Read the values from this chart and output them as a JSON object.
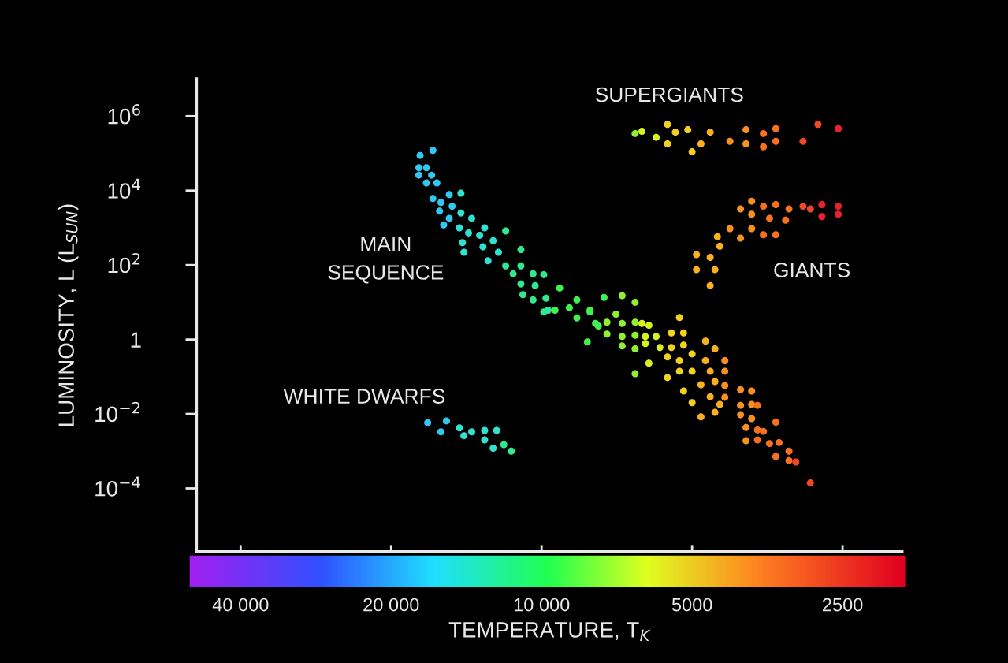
{
  "chart_data": {
    "type": "scatter",
    "xlabel": "TEMPERATURE, T$_{K}$",
    "ylabel": "LUMINOSITY, L (L$_{SUN}$)",
    "log": "xy",
    "xlim": [
      49000,
      1900
    ],
    "xticks": [
      {
        "value": 40000,
        "label": "40 000"
      },
      {
        "value": 20000,
        "label": "20 000"
      },
      {
        "value": 10000,
        "label": "10 000"
      },
      5000,
      2500
    ],
    "ylim": [
      2e-06,
      10000000.0
    ],
    "yticks": [
      {
        "value": 0.0001,
        "label": "10$^{−4}$"
      },
      {
        "value": 0.01,
        "label": "10$^{−2}$"
      },
      1,
      {
        "value": 100,
        "label": "10$^{2}$"
      },
      {
        "value": 10000,
        "label": "10$^{4}$"
      },
      {
        "value": 1000000,
        "label": "10$^{6}$"
      }
    ],
    "marker": "circle",
    "series": [
      {
        "x": [
          16500,
          17500,
          17600,
          17000,
          17600,
          16600,
          17000,
          16200,
          15300,
          14500,
          16500,
          15900,
          15100,
          16000,
          14500,
          15300,
          13800,
          15700,
          14600,
          13000,
          11800,
          14000,
          13300,
          14400,
          12500,
          13100,
          11000,
          14300,
          12200,
          12800,
          11800,
          11000,
          11400,
          10400,
          9900,
          11000,
          10300,
          9200,
          10900,
          10400,
          9800,
          9900,
          9400,
          8800,
          8500,
          8500,
          8000,
          7800,
          8100,
          7500,
          6900,
          6500,
          9700,
          8000,
          7100,
          7700,
          7400,
          6900,
          6500,
          6300,
          6100,
          5300,
          7400,
          6900,
          6500,
          6200,
          5900,
          5500,
          5200,
          6900,
          6500,
          6200,
          5800,
          5500,
          5200,
          4700,
          4500,
          6100,
          5600,
          5300,
          5000,
          4700,
          4300,
          6500,
          5600,
          5300,
          5000,
          4600,
          4300,
          4800,
          4500,
          4300,
          5200,
          4600,
          4300,
          4000,
          3800,
          5000,
          4400,
          4000,
          3800,
          3700,
          4800,
          4500,
          4000,
          3800,
          3400,
          3900,
          3700,
          3600,
          3900,
          3700,
          3500,
          3350,
          3400,
          3200,
          3200,
          3100,
          2900
        ],
        "values": [
          120000,
          88000,
          41000,
          41000,
          26000,
          26000,
          16000,
          16000,
          7800,
          8500,
          6100,
          4800,
          3800,
          2800,
          2500,
          1800,
          1800,
          1200,
          1000,
          1000,
          820,
          730,
          630,
          400,
          450,
          310,
          260,
          220,
          220,
          130,
          95,
          95,
          58,
          58,
          55,
          31,
          28,
          24,
          16,
          11.6,
          12.8,
          5.5,
          6.1,
          7.1,
          11.6,
          3.8,
          6.1,
          2.7,
          0.86,
          13.5,
          15,
          10,
          6.1,
          5.5,
          4.8,
          2.3,
          2.9,
          2.7,
          2.9,
          2.7,
          2.4,
          3.9,
          1.4,
          1.2,
          1.3,
          1.2,
          1.2,
          1.5,
          1.5,
          0.67,
          0.56,
          0.78,
          0.61,
          0.61,
          0.71,
          0.9,
          0.56,
          0.23,
          0.34,
          0.27,
          0.41,
          0.27,
          0.27,
          0.12,
          0.095,
          0.14,
          0.14,
          0.14,
          0.14,
          0.061,
          0.074,
          0.058,
          0.041,
          0.029,
          0.028,
          0.045,
          0.041,
          0.02,
          0.018,
          0.017,
          0.018,
          0.017,
          0.0083,
          0.011,
          0.0095,
          0.0075,
          0.006,
          0.0043,
          0.0037,
          0.0034,
          0.0019,
          0.002,
          0.0016,
          0.0017,
          0.00072,
          0.001,
          0.00056,
          0.00051,
          0.00014
        ],
        "colors": [
          "#30c8f0",
          "#30c8f0",
          "#30c8f0",
          "#30c8f0",
          "#30c8f0",
          "#30c8f0",
          "#30c8f0",
          "#30c8f0",
          "#30c8f0",
          "#30e0d0",
          "#30c8f0",
          "#30c8f0",
          "#30c8f0",
          "#30c8f0",
          "#30e0d0",
          "#30c8f0",
          "#30e0d0",
          "#30c8f0",
          "#30e0d0",
          "#30e0d0",
          "#30e890",
          "#30e0d0",
          "#30e0d0",
          "#30e0d0",
          "#30e0d0",
          "#30e0d0",
          "#30e890",
          "#30e0d0",
          "#30e0d0",
          "#30e0d0",
          "#30e890",
          "#30e890",
          "#30e890",
          "#30e890",
          "#30e890",
          "#30e890",
          "#30e890",
          "#40f050",
          "#30e890",
          "#30e890",
          "#30e890",
          "#30e890",
          "#40f050",
          "#40f050",
          "#40f050",
          "#40f050",
          "#40f050",
          "#40f050",
          "#40f050",
          "#40f050",
          "#90f030",
          "#90f030",
          "#30e890",
          "#40f050",
          "#90f030",
          "#40f050",
          "#90f030",
          "#90f030",
          "#90f030",
          "#d8f020",
          "#d8f020",
          "#f0d020",
          "#90f030",
          "#90f030",
          "#90f030",
          "#d8f020",
          "#d8f020",
          "#f0d020",
          "#f0d020",
          "#90f030",
          "#90f030",
          "#d8f020",
          "#d8f020",
          "#f0d020",
          "#f0d020",
          "#f8b020",
          "#f8b020",
          "#d8f020",
          "#f0d020",
          "#f0d020",
          "#f0d020",
          "#f8b020",
          "#f89020",
          "#90f030",
          "#f0d020",
          "#f0d020",
          "#f0d020",
          "#f8b020",
          "#f89020",
          "#f8b020",
          "#f8b020",
          "#f89020",
          "#f0d020",
          "#f8b020",
          "#f89020",
          "#f89020",
          "#f89020",
          "#f0d020",
          "#f8b020",
          "#f89020",
          "#f89020",
          "#f87020",
          "#f8b020",
          "#f8b020",
          "#f89020",
          "#f89020",
          "#f87020",
          "#f89020",
          "#f87020",
          "#f87020",
          "#f89020",
          "#f87020",
          "#f87020",
          "#f87020",
          "#f87020",
          "#f87020",
          "#f87020",
          "#f04820",
          "#f04820"
        ]
      },
      {
        "x": [
          6500,
          6300,
          5900,
          5600,
          5400,
          5600,
          5100,
          4800,
          5000,
          4600,
          4200,
          3900,
          3900,
          3600,
          3400,
          3600,
          3400,
          3000,
          2800,
          2550
        ],
        "values": [
          340000,
          390000,
          270000,
          600000,
          370000,
          180000,
          430000,
          180000,
          110000,
          370000,
          210000,
          430000,
          180000,
          340000,
          460000,
          150000,
          210000,
          210000,
          600000,
          460000
        ],
        "colors": [
          "#90f030",
          "#d8f020",
          "#d8f020",
          "#f0d020",
          "#f0d020",
          "#f0d020",
          "#f0d020",
          "#f8b020",
          "#f0d020",
          "#f8b020",
          "#f89020",
          "#f89020",
          "#f89020",
          "#f87020",
          "#f87020",
          "#f87020",
          "#f87020",
          "#f04820",
          "#f04820",
          "#e82030"
        ]
      },
      {
        "x": [
          3800,
          4000,
          3600,
          3400,
          3200,
          3000,
          2900,
          2750,
          2550,
          2550,
          3800,
          3500,
          3250,
          2750,
          4200,
          3800,
          3600,
          3400,
          4000,
          4450,
          4400,
          4900,
          4600,
          4900,
          4500,
          4600
        ],
        "values": [
          5200,
          3200,
          3800,
          4200,
          3200,
          3800,
          3200,
          4200,
          3800,
          2300,
          2300,
          1800,
          1600,
          2000,
          950,
          950,
          650,
          650,
          530,
          580,
          320,
          190,
          160,
          75,
          75,
          28
        ],
        "colors": [
          "#f89020",
          "#f89020",
          "#f87020",
          "#f87020",
          "#f87020",
          "#f04820",
          "#f04820",
          "#e82030",
          "#e82030",
          "#e82030",
          "#f89020",
          "#f87020",
          "#f87020",
          "#e82030",
          "#f89020",
          "#f89020",
          "#f87020",
          "#f87020",
          "#f89020",
          "#f8b020",
          "#f8b020",
          "#f8b020",
          "#f8b020",
          "#f8b020",
          "#f8b020",
          "#f8b020"
        ]
      },
      {
        "x": [
          16900,
          15500,
          15900,
          14600,
          14300,
          13800,
          13000,
          12300,
          13000,
          12500,
          11900,
          11500
        ],
        "values": [
          0.0058,
          0.0065,
          0.0033,
          0.0042,
          0.0026,
          0.0033,
          0.0036,
          0.0036,
          0.002,
          0.0012,
          0.0015,
          0.001
        ],
        "colors": [
          "#30c8f0",
          "#30c8f0",
          "#30c8f0",
          "#30e0d0",
          "#30e0d0",
          "#30e0d0",
          "#30e0d0",
          "#30e0d0",
          "#30e0d0",
          "#30e0d0",
          "#30e890",
          "#30e890"
        ]
      }
    ],
    "annotations": [
      "SUPERGIANTS",
      "MAIN\nSEQUENCE",
      "GIANTS",
      "WHITE DWARFS"
    ]
  }
}
